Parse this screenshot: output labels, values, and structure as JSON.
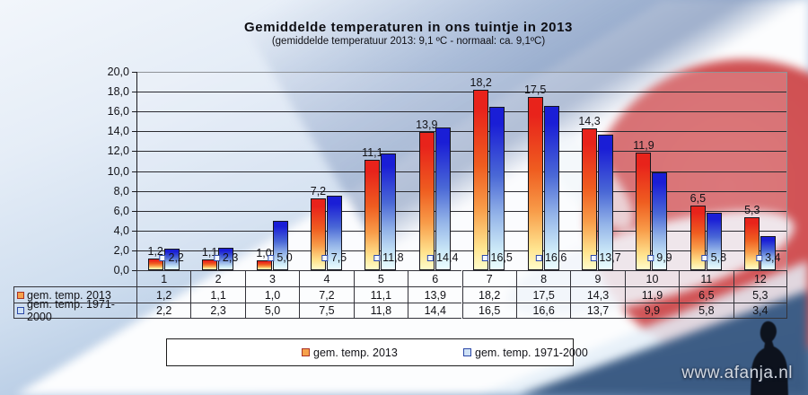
{
  "title": "Gemiddelde temperaturen in ons tuintje in 2013",
  "subtitle": "(gemiddelde temperatuur 2013: 9,1 ºC - normaal: ca. 9,1ºC)",
  "watermark": "www.afanja.nl",
  "chart_data": {
    "type": "bar",
    "title": "Gemiddelde temperaturen in ons tuintje in 2013",
    "subtitle": "(gemiddelde temperatuur 2013: 9,1 ºC - normaal: ca. 9,1ºC)",
    "categories": [
      "1",
      "2",
      "3",
      "4",
      "5",
      "6",
      "7",
      "8",
      "9",
      "10",
      "11",
      "12"
    ],
    "series": [
      {
        "name": "gem. temp. 2013",
        "values": [
          1.2,
          1.1,
          1.0,
          7.2,
          11.1,
          13.9,
          18.2,
          17.5,
          14.3,
          11.9,
          6.5,
          5.3
        ]
      },
      {
        "name": "gem. temp. 1971-2000",
        "values": [
          2.2,
          2.3,
          5.0,
          7.5,
          11.8,
          14.4,
          16.5,
          16.6,
          13.7,
          9.9,
          5.8,
          3.4
        ]
      }
    ],
    "ylim": [
      0,
      20
    ],
    "ytick_step": 2,
    "decimal_separator": ",",
    "grid": true,
    "legend_position": "bottom",
    "data_table": true,
    "colors": {
      "s1_gradient": [
        "#e8231b",
        "#ef5d20",
        "#f89c49",
        "#ffe48f",
        "#fffccb"
      ],
      "s2_gradient": [
        "#1a1ed6",
        "#4a68d6",
        "#93b3e8",
        "#cdeaf8",
        "#ecfdff"
      ],
      "s1_marker_fill": "#f6a14b",
      "s1_marker_border": "#a93226",
      "s2_marker_fill": "#cfe2f6",
      "s2_marker_border": "#2c48a8",
      "bar_border": "#16161e",
      "grid_color": "#2b2b30",
      "frame_color": "#8f9398",
      "axis_color": "#1a1a1f"
    }
  }
}
